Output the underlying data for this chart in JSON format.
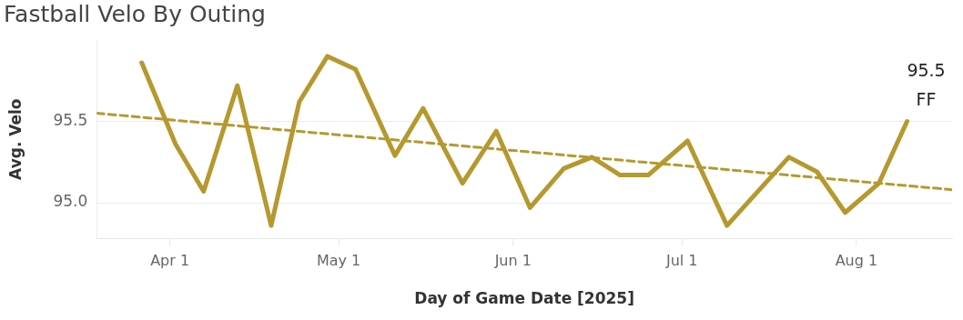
{
  "chart_data": {
    "type": "line",
    "title": "Fastball Velo By Outing",
    "xlabel": "Day of Game Date [2025]",
    "ylabel": "Avg. Velo",
    "x": [
      "2025-03-27",
      "2025-04-02",
      "2025-04-07",
      "2025-04-13",
      "2025-04-19",
      "2025-04-24",
      "2025-04-29",
      "2025-05-04",
      "2025-05-11",
      "2025-05-16",
      "2025-05-23",
      "2025-05-29",
      "2025-06-04",
      "2025-06-10",
      "2025-06-15",
      "2025-06-20",
      "2025-06-25",
      "2025-07-02",
      "2025-07-09",
      "2025-07-20",
      "2025-07-25",
      "2025-07-30",
      "2025-08-05",
      "2025-08-10"
    ],
    "series": [
      {
        "name": "FF",
        "color": "#b5992f",
        "values": [
          95.86,
          95.36,
          95.07,
          95.72,
          94.86,
          95.62,
          95.9,
          95.82,
          95.29,
          95.58,
          95.12,
          95.44,
          94.97,
          95.21,
          95.28,
          95.17,
          95.17,
          95.38,
          94.86,
          95.28,
          95.19,
          94.94,
          95.12,
          95.5
        ],
        "value_labels": [
          null,
          null,
          null,
          null,
          null,
          null,
          null,
          null,
          null,
          null,
          null,
          null,
          null,
          null,
          null,
          null,
          null,
          null,
          null,
          null,
          null,
          null,
          null,
          "95.5"
        ]
      },
      {
        "type": "line",
        "color": "#b5992f",
        "line_style": "dashed",
        "x": [
          "2025-03-19",
          "2025-08-18"
        ],
        "values": [
          95.55,
          95.08
        ]
      }
    ],
    "xlim": [
      "2025-03-19",
      "2025-08-18"
    ],
    "xticks": [
      {
        "value": "2025-04-01",
        "label": "Apr 1"
      },
      {
        "value": "2025-05-01",
        "label": "May 1"
      },
      {
        "value": "2025-06-01",
        "label": "Jun 1"
      },
      {
        "value": "2025-07-01",
        "label": "Jul 1"
      },
      {
        "value": "2025-08-01",
        "label": "Aug 1"
      }
    ],
    "ylim": [
      94.78,
      96.0
    ],
    "yticks": [
      {
        "value": 95,
        "label": "95.0"
      },
      {
        "value": 95.5,
        "label": "95.5"
      }
    ],
    "grid": "y",
    "legend": false,
    "marker": "none"
  }
}
